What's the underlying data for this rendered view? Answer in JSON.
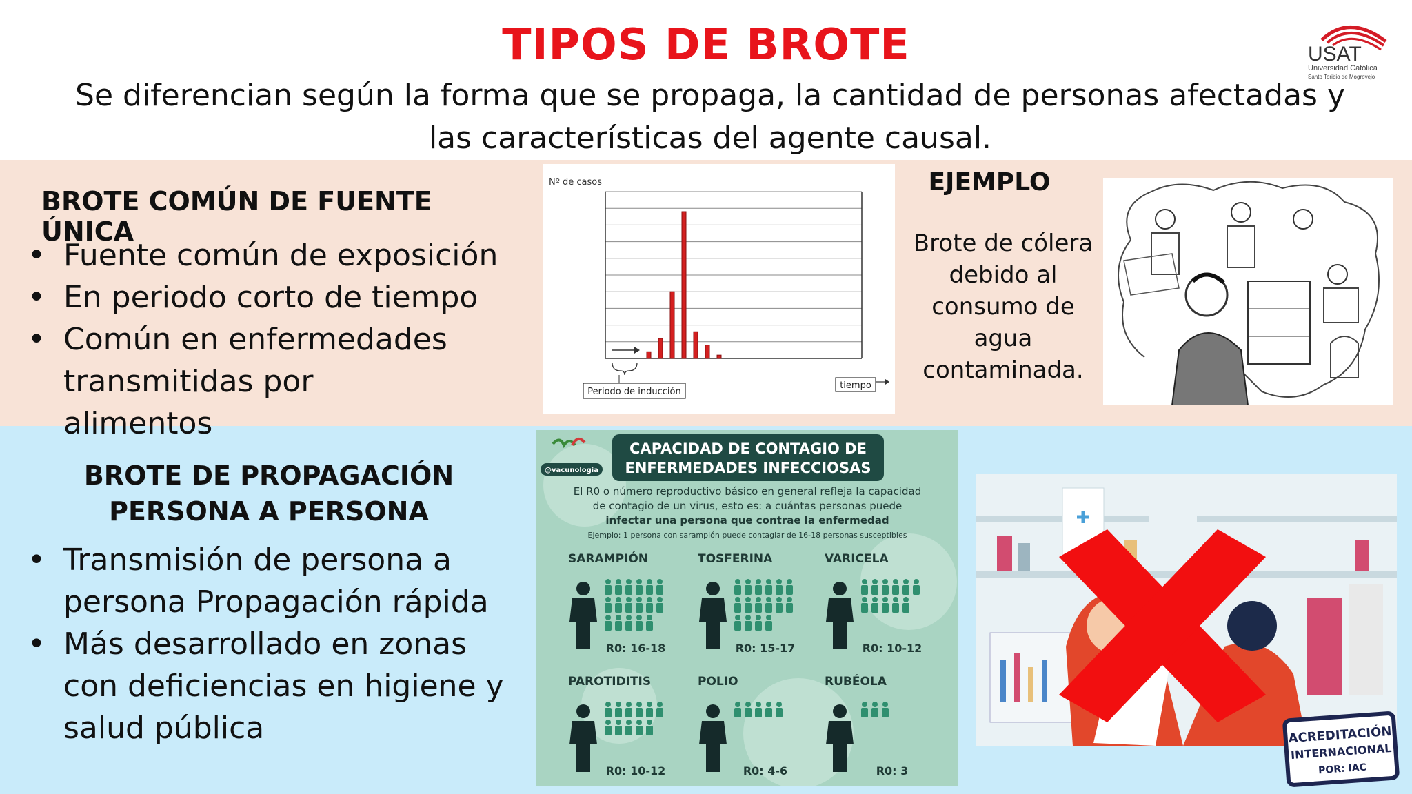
{
  "header": {
    "title": "TIPOS DE BROTE",
    "subtitle": "Se diferencian según la forma que se propaga, la cantidad de personas afectadas y las características del agente causal."
  },
  "logo": {
    "name": "USAT",
    "line1": "Universidad Católica",
    "line2": "Santo Toribio de Mogrovejo"
  },
  "section1": {
    "heading": "BROTE COMÚN DE FUENTE ÚNICA",
    "bullets": [
      "Fuente común de exposición",
      "En periodo corto de tiempo",
      "Común en enfermedades transmitidas por alimentos"
    ],
    "example_heading": "EJEMPLO",
    "example_text": "Brote de cólera debido al consumo de agua contaminada."
  },
  "chart_data": {
    "type": "bar",
    "ylabel": "Nº de casos",
    "xlabel": "tiempo",
    "annotation": "Periodo de inducción",
    "values": [
      1,
      3,
      10,
      22,
      4,
      2,
      0.5
    ],
    "ylim": [
      0,
      25
    ]
  },
  "section2": {
    "heading_line1": "BROTE DE PROPAGACIÓN",
    "heading_line2": "PERSONA A PERSONA",
    "bullets": [
      "Transmisión de persona a persona Propagación rápida",
      "Más desarrollado en zonas con deficiencias en higiene y salud pública"
    ]
  },
  "infographic": {
    "org": "@vacunologia",
    "title_line1": "CAPACIDAD DE CONTAGIO DE",
    "title_line2": "ENFERMEDADES INFECCIOSAS",
    "intro1": "El R0 o número reproductivo básico en general refleja la capacidad",
    "intro2": "de contagio de un virus, esto es: a cuántas personas puede",
    "intro3": "infectar una persona que contrae la enfermedad",
    "example": "Ejemplo: 1 persona con sarampión puede contagiar de 16-18 personas susceptibles",
    "diseases": [
      {
        "name": "SARAMPIÓN",
        "r0": "R0: 16-18",
        "count": 17
      },
      {
        "name": "TOSFERINA",
        "r0": "R0: 15-17",
        "count": 16
      },
      {
        "name": "VARICELA",
        "r0": "R0: 10-12",
        "count": 11
      },
      {
        "name": "PAROTIDITIS",
        "r0": "R0: 10-12",
        "count": 11
      },
      {
        "name": "POLIO",
        "r0": "R0: 4-6",
        "count": 5
      },
      {
        "name": "RUBÉOLA",
        "r0": "R0: 3",
        "count": 3
      }
    ]
  },
  "badge": {
    "line1": "ACREDITACIÓN",
    "line2": "INTERNACIONAL",
    "line3": "POR: IAC"
  },
  "colors": {
    "title": "#e8141b",
    "band1": "#f8e3d7",
    "band2": "#c9ebfa",
    "bar": "#d42020",
    "infographic": "#a9d4c2",
    "infographic_dark": "#1f4a43",
    "cross": "#f20f10"
  }
}
